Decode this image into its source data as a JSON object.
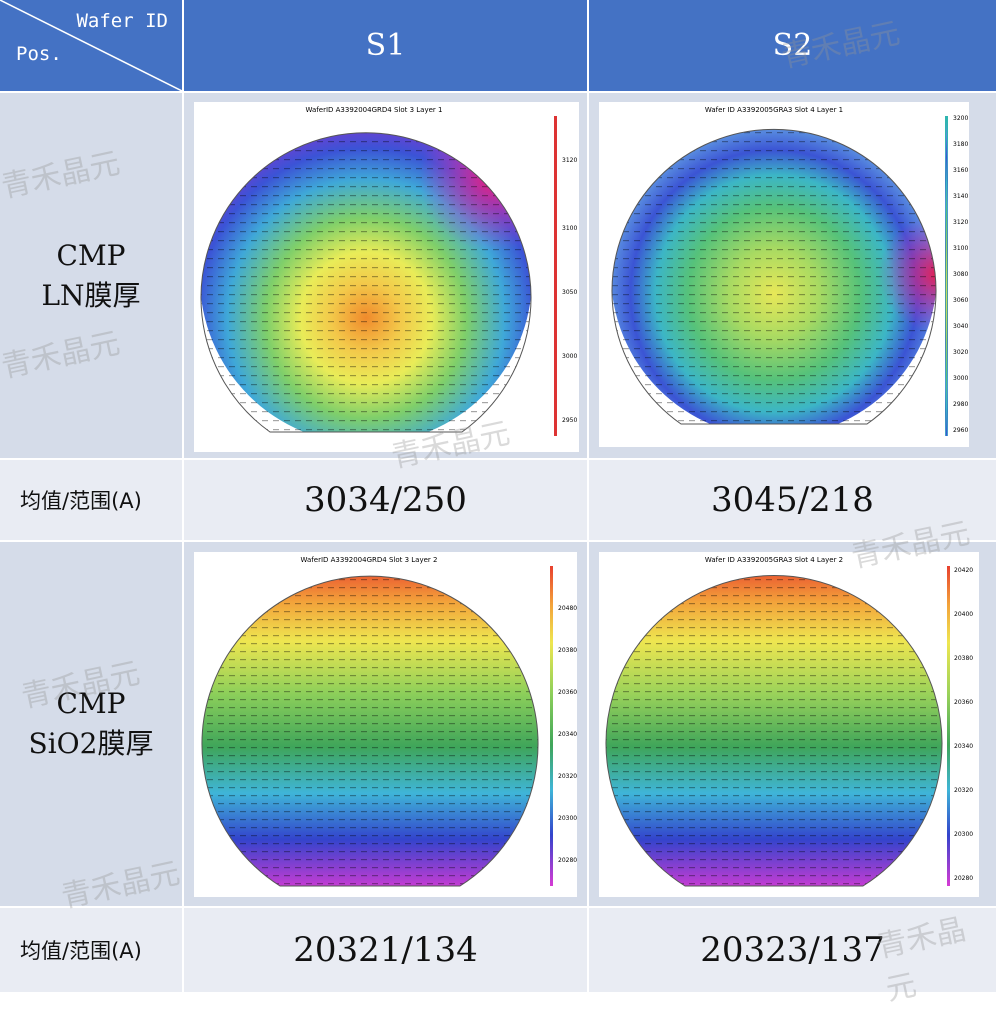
{
  "header": {
    "corner_top": "Wafer ID",
    "corner_bottom": "Pos.",
    "columns": [
      "S1",
      "S2"
    ]
  },
  "rows": [
    {
      "label_line1": "CMP",
      "label_line2": "LN膜厚",
      "maps": [
        {
          "title": "WaferID A3392004GRD4    Slot 3    Layer 1",
          "scale": [
            "3120",
            "3100",
            "3050",
            "3000",
            "2950"
          ]
        },
        {
          "title": "Wafer ID A3392005GRA3    Slot 4    Layer 1",
          "scale": [
            "3200",
            "3180",
            "3160",
            "3140",
            "3120",
            "3100",
            "3080",
            "3060",
            "3040",
            "3020",
            "3000",
            "2980",
            "2960"
          ]
        }
      ]
    },
    {
      "label_line1": "CMP",
      "label_line2": "SiO2膜厚",
      "maps": [
        {
          "title": "WaferID A3392004GRD4    Slot 3    Layer 2",
          "scale": [
            "20480",
            "20380",
            "20360",
            "20340",
            "20320",
            "20300",
            "20280"
          ]
        },
        {
          "title": "Wafer ID A3392005GRA3    Slot 4    Layer 2",
          "scale": [
            "20420",
            "20400",
            "20380",
            "20360",
            "20340",
            "20320",
            "20300",
            "20280"
          ]
        }
      ]
    }
  ],
  "stats": [
    {
      "label": "均值/范围(A)",
      "values": [
        "3034/250",
        "3045/218"
      ]
    },
    {
      "label": "均值/范围(A)",
      "values": [
        "20321/134",
        "20323/137"
      ]
    }
  ],
  "watermark": "青禾晶元"
}
